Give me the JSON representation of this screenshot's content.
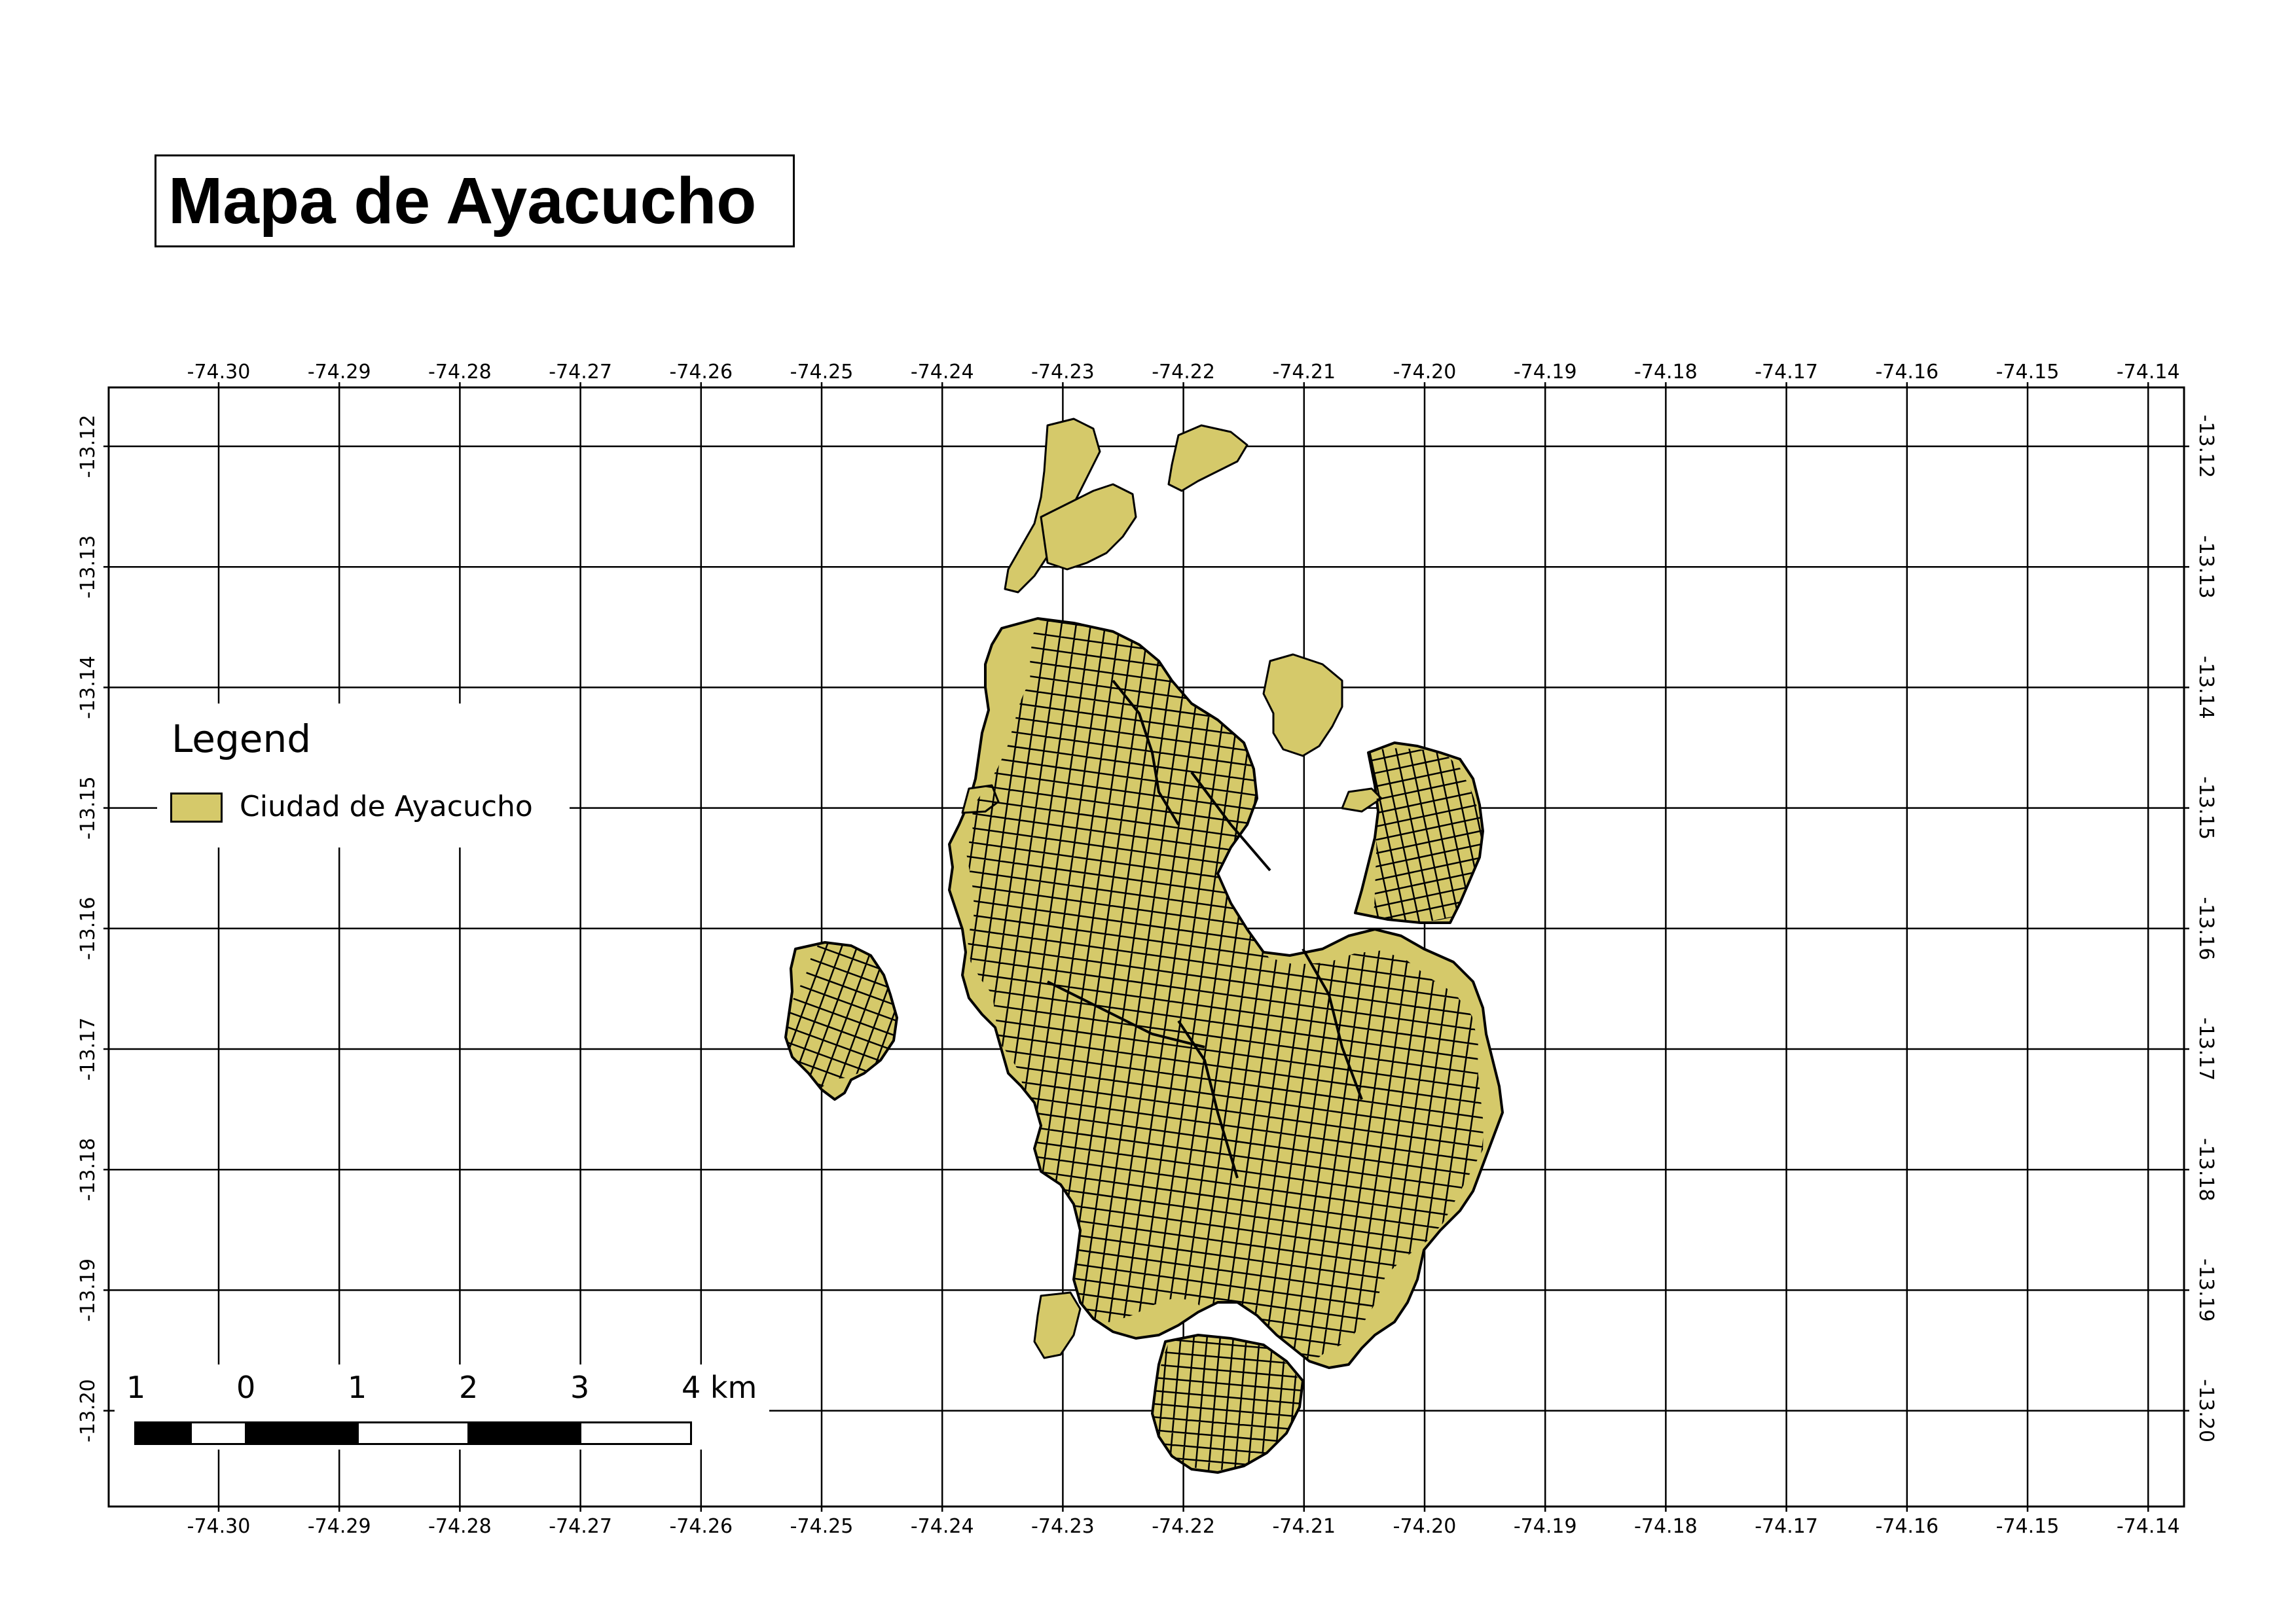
{
  "map": {
    "title": "Mapa de Ayacucho",
    "feature_fill": "#d5c96a",
    "feature_stroke": "#000000",
    "graticule": {
      "longitudes": [
        "-74.30",
        "-74.29",
        "-74.28",
        "-74.27",
        "-74.26",
        "-74.25",
        "-74.24",
        "-74.23",
        "-74.22",
        "-74.21",
        "-74.20",
        "-74.19",
        "-74.18",
        "-74.17",
        "-74.16",
        "-74.15",
        "-74.14"
      ],
      "latitudes": [
        "-13.12",
        "-13.13",
        "-13.14",
        "-13.15",
        "-13.16",
        "-13.17",
        "-13.18",
        "-13.19",
        "-13.20"
      ]
    }
  },
  "legend": {
    "title": "Legend",
    "items": [
      {
        "label": "Ciudad de Ayacucho",
        "color": "#d5c96a"
      }
    ]
  },
  "scale_bar": {
    "labels": [
      "1",
      "0",
      "1",
      "2",
      "3",
      "4 km"
    ]
  }
}
